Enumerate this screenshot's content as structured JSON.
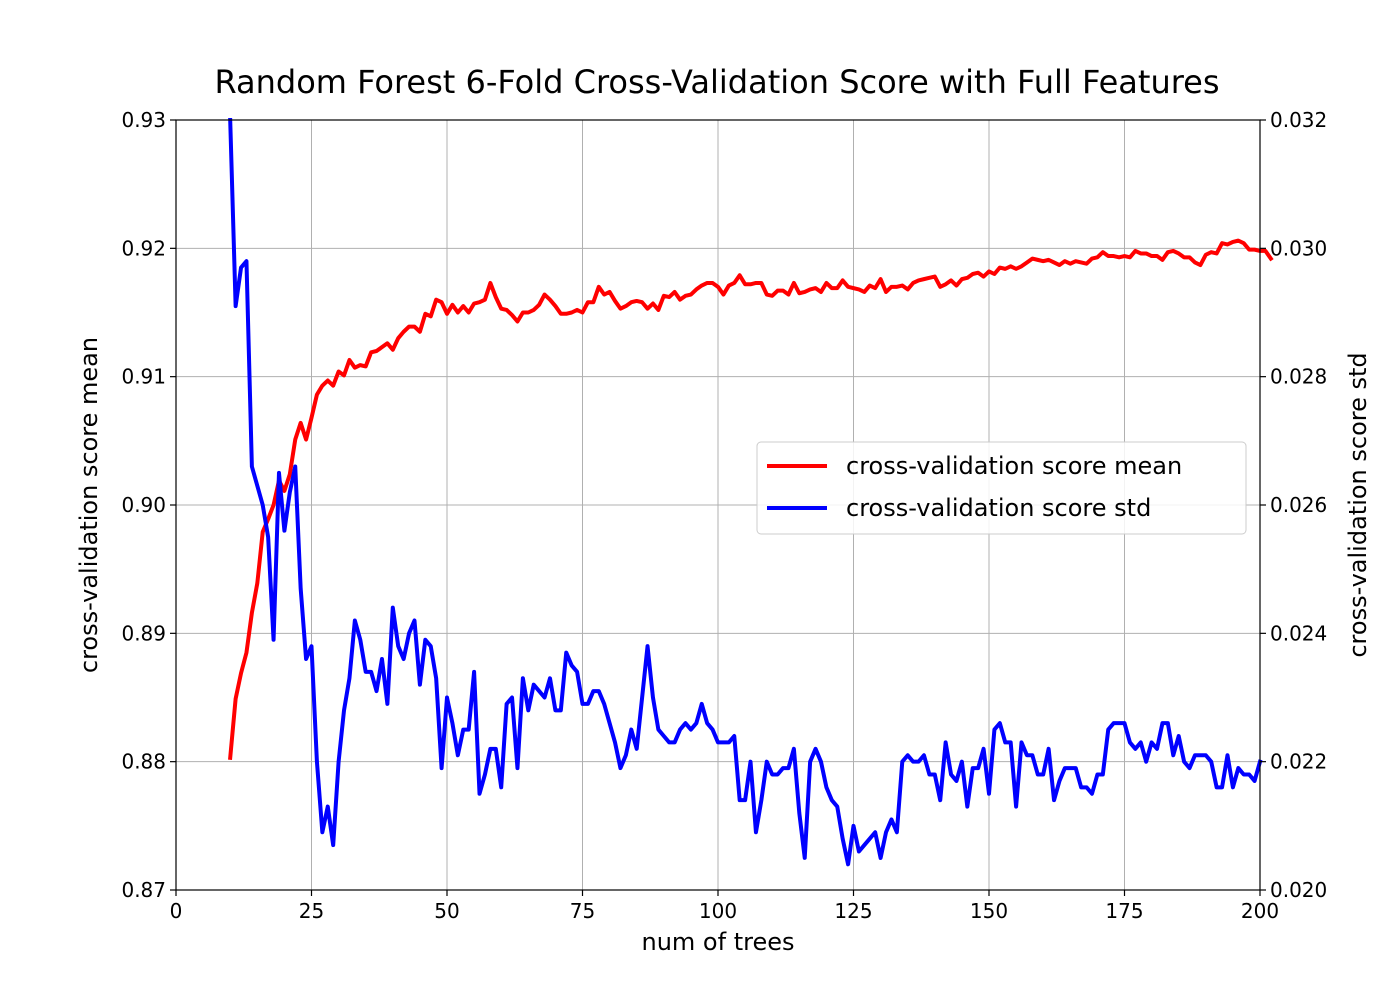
{
  "chart_data": {
    "type": "line",
    "title": "Random Forest 6-Fold Cross-Validation Score with Full Features",
    "xlabel": "num of trees",
    "ylabel_left": "cross-validation score mean",
    "ylabel_right": "cross-validation score std",
    "xlim": [
      0,
      200
    ],
    "ylim_left": [
      0.87,
      0.93
    ],
    "ylim_right": [
      0.02,
      0.032
    ],
    "x_ticks": [
      "0",
      "25",
      "50",
      "75",
      "100",
      "125",
      "150",
      "175",
      "200"
    ],
    "y_ticks_left": [
      "0.87",
      "0.88",
      "0.89",
      "0.90",
      "0.91",
      "0.92",
      "0.93"
    ],
    "y_ticks_right": [
      "0.020",
      "0.022",
      "0.024",
      "0.026",
      "0.028",
      "0.030",
      "0.032"
    ],
    "grid": true,
    "legend_position": "center-right",
    "x_start": 10,
    "series": [
      {
        "name": "cross-validation score mean",
        "axis": "left",
        "color": "#ff0000",
        "values": [
          0.8803,
          0.8849,
          0.8869,
          0.8885,
          0.8916,
          0.8939,
          0.8979,
          0.8989,
          0.9,
          0.9019,
          0.9011,
          0.9024,
          0.9051,
          0.9064,
          0.9051,
          0.9068,
          0.9086,
          0.9093,
          0.9097,
          0.9093,
          0.9104,
          0.9101,
          0.9113,
          0.9107,
          0.9109,
          0.9108,
          0.9119,
          0.912,
          0.9123,
          0.9126,
          0.9121,
          0.913,
          0.9135,
          0.9139,
          0.9139,
          0.9135,
          0.9149,
          0.9147,
          0.916,
          0.9158,
          0.9149,
          0.9156,
          0.915,
          0.9155,
          0.915,
          0.9157,
          0.9158,
          0.916,
          0.9173,
          0.9162,
          0.9153,
          0.9152,
          0.9148,
          0.9143,
          0.915,
          0.915,
          0.9152,
          0.9156,
          0.9164,
          0.916,
          0.9155,
          0.9149,
          0.9149,
          0.915,
          0.9152,
          0.915,
          0.9158,
          0.9158,
          0.917,
          0.9164,
          0.9166,
          0.9159,
          0.9153,
          0.9155,
          0.9158,
          0.9159,
          0.9158,
          0.9153,
          0.9157,
          0.9152,
          0.9163,
          0.9162,
          0.9166,
          0.916,
          0.9163,
          0.9164,
          0.9168,
          0.9171,
          0.9173,
          0.9173,
          0.917,
          0.9164,
          0.9171,
          0.9173,
          0.9179,
          0.9172,
          0.9172,
          0.9173,
          0.9173,
          0.9164,
          0.9163,
          0.9167,
          0.9167,
          0.9164,
          0.9173,
          0.9165,
          0.9166,
          0.9168,
          0.9169,
          0.9166,
          0.9173,
          0.9169,
          0.9169,
          0.9175,
          0.917,
          0.9169,
          0.9168,
          0.9166,
          0.9171,
          0.9169,
          0.9176,
          0.9166,
          0.917,
          0.917,
          0.9171,
          0.9168,
          0.9173,
          0.9175,
          0.9176,
          0.9177,
          0.9178,
          0.917,
          0.9172,
          0.9175,
          0.9171,
          0.9176,
          0.9177,
          0.918,
          0.9181,
          0.9178,
          0.9182,
          0.918,
          0.9185,
          0.9184,
          0.9186,
          0.9184,
          0.9186,
          0.9189,
          0.9192,
          0.9191,
          0.919,
          0.9191,
          0.9189,
          0.9187,
          0.919,
          0.9188,
          0.919,
          0.9189,
          0.9188,
          0.9192,
          0.9193,
          0.9197,
          0.9194,
          0.9194,
          0.9193,
          0.9194,
          0.9193,
          0.9198,
          0.9196,
          0.9196,
          0.9194,
          0.9194,
          0.9191,
          0.9197,
          0.9198,
          0.9196,
          0.9193,
          0.9193,
          0.9189,
          0.9187,
          0.9195,
          0.9197,
          0.9196,
          0.9204,
          0.9203,
          0.9205,
          0.9206,
          0.9204,
          0.9199,
          0.9199,
          0.9198,
          0.9198,
          0.9192
        ]
      },
      {
        "name": "cross-validation score std",
        "axis": "right",
        "color": "#0000ff",
        "values": [
          0.032,
          0.0291,
          0.0297,
          0.0298,
          0.0266,
          0.0263,
          0.026,
          0.0255,
          0.0239,
          0.0265,
          0.0256,
          0.0262,
          0.0266,
          0.0247,
          0.0236,
          0.0238,
          0.022,
          0.0209,
          0.0213,
          0.0207,
          0.022,
          0.0228,
          0.0233,
          0.0242,
          0.0239,
          0.0234,
          0.0234,
          0.0231,
          0.0236,
          0.0229,
          0.0244,
          0.0238,
          0.0236,
          0.024,
          0.0242,
          0.0232,
          0.0239,
          0.0238,
          0.0233,
          0.0219,
          0.023,
          0.0226,
          0.0221,
          0.0225,
          0.0225,
          0.0234,
          0.0215,
          0.0218,
          0.0222,
          0.0222,
          0.0216,
          0.0229,
          0.023,
          0.0219,
          0.0233,
          0.0228,
          0.0232,
          0.0231,
          0.023,
          0.0233,
          0.0228,
          0.0228,
          0.0237,
          0.0235,
          0.0234,
          0.0229,
          0.0229,
          0.0231,
          0.0231,
          0.0229,
          0.0226,
          0.0223,
          0.0219,
          0.0221,
          0.0225,
          0.0222,
          0.023,
          0.0238,
          0.023,
          0.0225,
          0.0224,
          0.0223,
          0.0223,
          0.0225,
          0.0226,
          0.0225,
          0.0226,
          0.0229,
          0.0226,
          0.0225,
          0.0223,
          0.0223,
          0.0223,
          0.0224,
          0.0214,
          0.0214,
          0.022,
          0.0209,
          0.0214,
          0.022,
          0.0218,
          0.0218,
          0.0219,
          0.0219,
          0.0222,
          0.0212,
          0.0205,
          0.022,
          0.0222,
          0.022,
          0.0216,
          0.0214,
          0.0213,
          0.0208,
          0.0204,
          0.021,
          0.0206,
          0.0207,
          0.0208,
          0.0209,
          0.0205,
          0.0209,
          0.0211,
          0.0209,
          0.022,
          0.0221,
          0.022,
          0.022,
          0.0221,
          0.0218,
          0.0218,
          0.0214,
          0.0223,
          0.0218,
          0.0217,
          0.022,
          0.0213,
          0.0219,
          0.0219,
          0.0222,
          0.0215,
          0.0225,
          0.0226,
          0.0223,
          0.0223,
          0.0213,
          0.0223,
          0.0221,
          0.0221,
          0.0218,
          0.0218,
          0.0222,
          0.0214,
          0.0217,
          0.0219,
          0.0219,
          0.0219,
          0.0216,
          0.0216,
          0.0215,
          0.0218,
          0.0218,
          0.0225,
          0.0226,
          0.0226,
          0.0226,
          0.0223,
          0.0222,
          0.0223,
          0.022,
          0.0223,
          0.0222,
          0.0226,
          0.0226,
          0.0221,
          0.0224,
          0.022,
          0.0219,
          0.0221,
          0.0221,
          0.0221,
          0.022,
          0.0216,
          0.0216,
          0.0221,
          0.0216,
          0.0219,
          0.0218,
          0.0218,
          0.0217,
          0.022
        ]
      }
    ]
  }
}
